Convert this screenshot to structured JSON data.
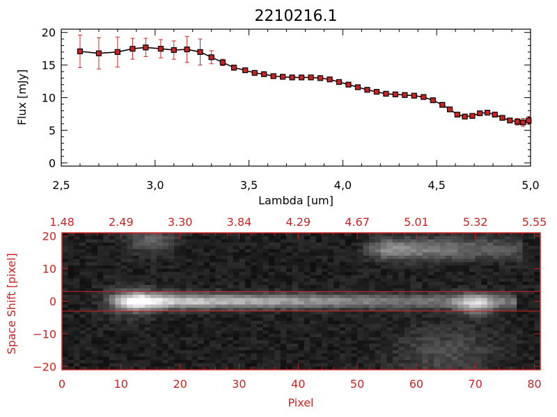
{
  "colors": {
    "axis_top": "#000000",
    "axis_bottom": "#cc2222",
    "markers": "#cc2222",
    "line": "#000000"
  },
  "chart_data": [
    {
      "type": "line",
      "title": "2210216.1",
      "xlabel": "Lambda [um]",
      "ylabel": "Flux [mJy]",
      "xlim": [
        2.5,
        5.0
      ],
      "ylim": [
        -0.5,
        20.5
      ],
      "xticks": [
        "2.5",
        "3.0",
        "3.5",
        "4.0",
        "4.5",
        "5.0"
      ],
      "yticks": [
        "0",
        "5",
        "10",
        "15",
        "20"
      ],
      "grid": false,
      "series": [
        {
          "x": [
            2.6,
            2.7,
            2.8,
            2.88,
            2.95,
            3.03,
            3.1,
            3.17,
            3.24,
            3.3,
            3.36,
            3.42,
            3.48,
            3.53,
            3.58,
            3.63,
            3.68,
            3.73,
            3.78,
            3.83,
            3.88,
            3.93,
            3.98,
            4.03,
            4.08,
            4.13,
            4.18,
            4.23,
            4.28,
            4.33,
            4.38,
            4.43,
            4.48,
            4.53,
            4.57,
            4.61,
            4.65,
            4.69,
            4.73,
            4.77,
            4.81,
            4.85,
            4.89,
            4.93,
            4.96,
            4.99
          ],
          "y": [
            17.1,
            16.8,
            17.0,
            17.5,
            17.7,
            17.5,
            17.3,
            17.4,
            17.0,
            16.2,
            15.4,
            14.6,
            14.2,
            13.8,
            13.6,
            13.3,
            13.2,
            13.1,
            13.1,
            13.1,
            13.0,
            12.8,
            12.4,
            12.0,
            11.6,
            11.2,
            10.9,
            10.6,
            10.5,
            10.4,
            10.3,
            10.1,
            9.6,
            8.9,
            8.2,
            7.4,
            7.1,
            7.2,
            7.6,
            7.7,
            7.4,
            6.9,
            6.5,
            6.3,
            6.2,
            6.5
          ],
          "yerr": [
            2.5,
            2.4,
            2.3,
            1.6,
            1.4,
            1.4,
            1.4,
            2.0,
            2.0,
            1.0,
            0.5,
            0.4,
            0.3,
            0.3,
            0.3,
            0.3,
            0.3,
            0.3,
            0.3,
            0.3,
            0.3,
            0.3,
            0.3,
            0.3,
            0.3,
            0.3,
            0.3,
            0.3,
            0.3,
            0.3,
            0.3,
            0.3,
            0.3,
            0.3,
            0.3,
            0.3,
            0.3,
            0.3,
            0.3,
            0.3,
            0.3,
            0.3,
            0.3,
            0.5,
            0.6,
            0.6
          ]
        }
      ]
    },
    {
      "type": "heatmap",
      "xlabel": "Pixel",
      "ylabel": "Space Shift [pixel]",
      "xlim": [
        0,
        81
      ],
      "ylim": [
        -21,
        21
      ],
      "xticks": [
        "0",
        "10",
        "20",
        "30",
        "40",
        "50",
        "60",
        "70",
        "80"
      ],
      "yticks": [
        "−20",
        "−10",
        "0",
        "10",
        "20"
      ],
      "top_axis_ticks": [
        "1.48",
        "2.49",
        "3.30",
        "3.84",
        "4.29",
        "4.67",
        "5.01",
        "5.32",
        "5.55"
      ],
      "extraction_window": [
        -3,
        3
      ],
      "bright_regions": [
        {
          "x": [
            8,
            60
          ],
          "y": [
            -3,
            3
          ],
          "level": 0.95
        },
        {
          "x": 13,
          "y": 0,
          "level": 1.0
        },
        {
          "x": 70,
          "y": -1,
          "level": 0.6
        },
        {
          "x": [
            50,
            75
          ],
          "y": [
            14,
            20
          ],
          "level": 0.55
        },
        {
          "x": [
            10,
            20
          ],
          "y": [
            17,
            20
          ],
          "level": 0.35
        }
      ]
    }
  ]
}
